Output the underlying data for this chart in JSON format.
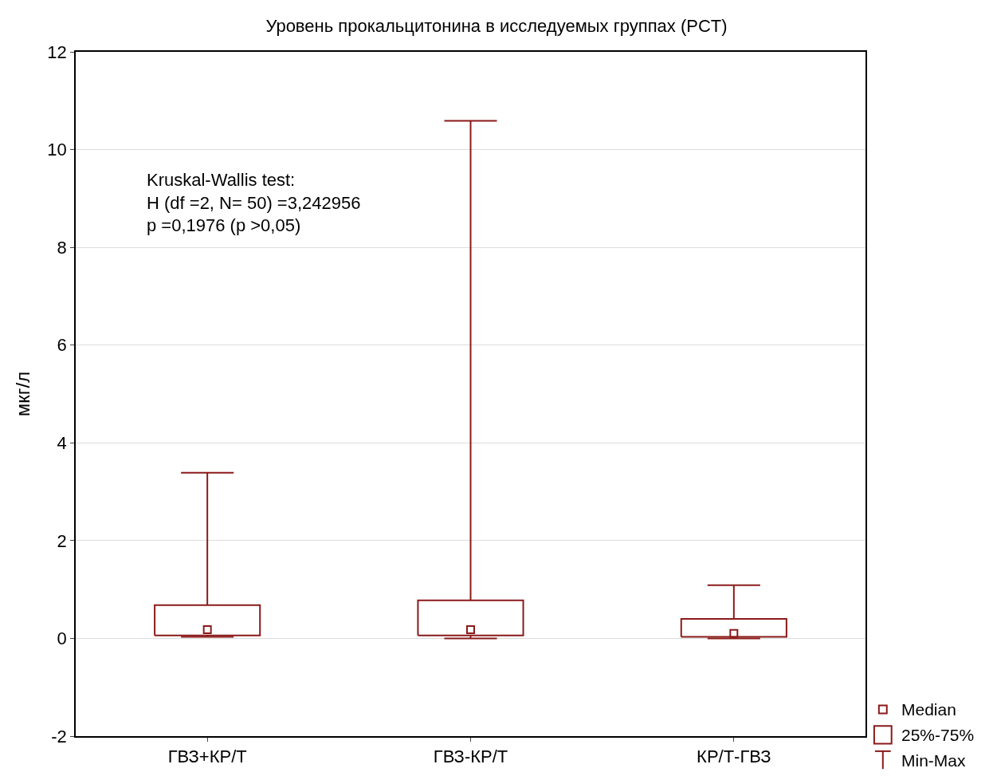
{
  "chart_data": {
    "type": "box",
    "title": "Уровень прокальцитонина в исследуемых группах (PCT)",
    "ylabel": "мкг/л",
    "categories": [
      "ГВЗ+КР/Т",
      "ГВЗ-КР/Т",
      "КР/Т-ГВЗ"
    ],
    "series": [
      {
        "color": "#8b1a1a",
        "boxes": [
          {
            "low": 0.03,
            "q1": 0.06,
            "median": 0.18,
            "q3": 0.68,
            "high": 3.39
          },
          {
            "low": 0.0,
            "q1": 0.06,
            "median": 0.18,
            "q3": 0.78,
            "high": 10.59
          },
          {
            "low": 0.0,
            "q1": 0.03,
            "median": 0.1,
            "q3": 0.4,
            "high": 1.09
          }
        ]
      }
    ],
    "annotations": [
      "Kruskal-Wallis test:\nH (df =2, N= 50) =3,242956\np =0,1976 (p >0,05)",
      "Median",
      "25%-75%",
      "Min-Max"
    ],
    "ylim": [
      -2,
      12
    ],
    "yticks": [
      -2,
      0,
      2,
      4,
      6,
      8,
      10,
      12
    ],
    "grid": "y"
  }
}
